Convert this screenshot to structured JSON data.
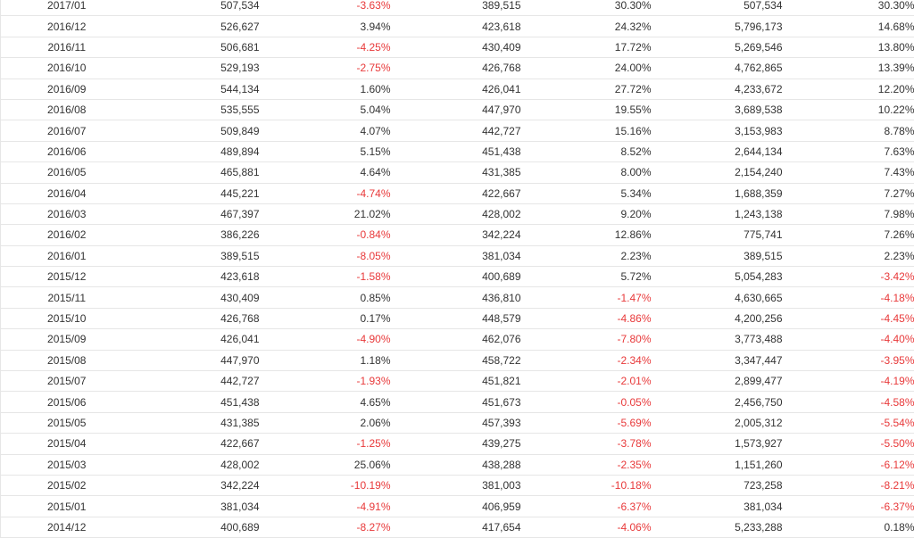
{
  "table": {
    "rows": [
      [
        "2017/01",
        "507,534",
        "-3.63%",
        "389,515",
        "30.30%",
        "507,534",
        "30.30%"
      ],
      [
        "2016/12",
        "526,627",
        "3.94%",
        "423,618",
        "24.32%",
        "5,796,173",
        "14.68%"
      ],
      [
        "2016/11",
        "506,681",
        "-4.25%",
        "430,409",
        "17.72%",
        "5,269,546",
        "13.80%"
      ],
      [
        "2016/10",
        "529,193",
        "-2.75%",
        "426,768",
        "24.00%",
        "4,762,865",
        "13.39%"
      ],
      [
        "2016/09",
        "544,134",
        "1.60%",
        "426,041",
        "27.72%",
        "4,233,672",
        "12.20%"
      ],
      [
        "2016/08",
        "535,555",
        "5.04%",
        "447,970",
        "19.55%",
        "3,689,538",
        "10.22%"
      ],
      [
        "2016/07",
        "509,849",
        "4.07%",
        "442,727",
        "15.16%",
        "3,153,983",
        "8.78%"
      ],
      [
        "2016/06",
        "489,894",
        "5.15%",
        "451,438",
        "8.52%",
        "2,644,134",
        "7.63%"
      ],
      [
        "2016/05",
        "465,881",
        "4.64%",
        "431,385",
        "8.00%",
        "2,154,240",
        "7.43%"
      ],
      [
        "2016/04",
        "445,221",
        "-4.74%",
        "422,667",
        "5.34%",
        "1,688,359",
        "7.27%"
      ],
      [
        "2016/03",
        "467,397",
        "21.02%",
        "428,002",
        "9.20%",
        "1,243,138",
        "7.98%"
      ],
      [
        "2016/02",
        "386,226",
        "-0.84%",
        "342,224",
        "12.86%",
        "775,741",
        "7.26%"
      ],
      [
        "2016/01",
        "389,515",
        "-8.05%",
        "381,034",
        "2.23%",
        "389,515",
        "2.23%"
      ],
      [
        "2015/12",
        "423,618",
        "-1.58%",
        "400,689",
        "5.72%",
        "5,054,283",
        "-3.42%"
      ],
      [
        "2015/11",
        "430,409",
        "0.85%",
        "436,810",
        "-1.47%",
        "4,630,665",
        "-4.18%"
      ],
      [
        "2015/10",
        "426,768",
        "0.17%",
        "448,579",
        "-4.86%",
        "4,200,256",
        "-4.45%"
      ],
      [
        "2015/09",
        "426,041",
        "-4.90%",
        "462,076",
        "-7.80%",
        "3,773,488",
        "-4.40%"
      ],
      [
        "2015/08",
        "447,970",
        "1.18%",
        "458,722",
        "-2.34%",
        "3,347,447",
        "-3.95%"
      ],
      [
        "2015/07",
        "442,727",
        "-1.93%",
        "451,821",
        "-2.01%",
        "2,899,477",
        "-4.19%"
      ],
      [
        "2015/06",
        "451,438",
        "4.65%",
        "451,673",
        "-0.05%",
        "2,456,750",
        "-4.58%"
      ],
      [
        "2015/05",
        "431,385",
        "2.06%",
        "457,393",
        "-5.69%",
        "2,005,312",
        "-5.54%"
      ],
      [
        "2015/04",
        "422,667",
        "-1.25%",
        "439,275",
        "-3.78%",
        "1,573,927",
        "-5.50%"
      ],
      [
        "2015/03",
        "428,002",
        "25.06%",
        "438,288",
        "-2.35%",
        "1,151,260",
        "-6.12%"
      ],
      [
        "2015/02",
        "342,224",
        "-10.19%",
        "381,003",
        "-10.18%",
        "723,258",
        "-8.21%"
      ],
      [
        "2015/01",
        "381,034",
        "-4.91%",
        "406,959",
        "-6.37%",
        "381,034",
        "-6.37%"
      ],
      [
        "2014/12",
        "400,689",
        "-8.27%",
        "417,654",
        "-4.06%",
        "5,233,288",
        "0.18%"
      ]
    ]
  },
  "colors": {
    "negative": "#e8393a",
    "text": "#333333",
    "border": "#e6e6e6"
  }
}
